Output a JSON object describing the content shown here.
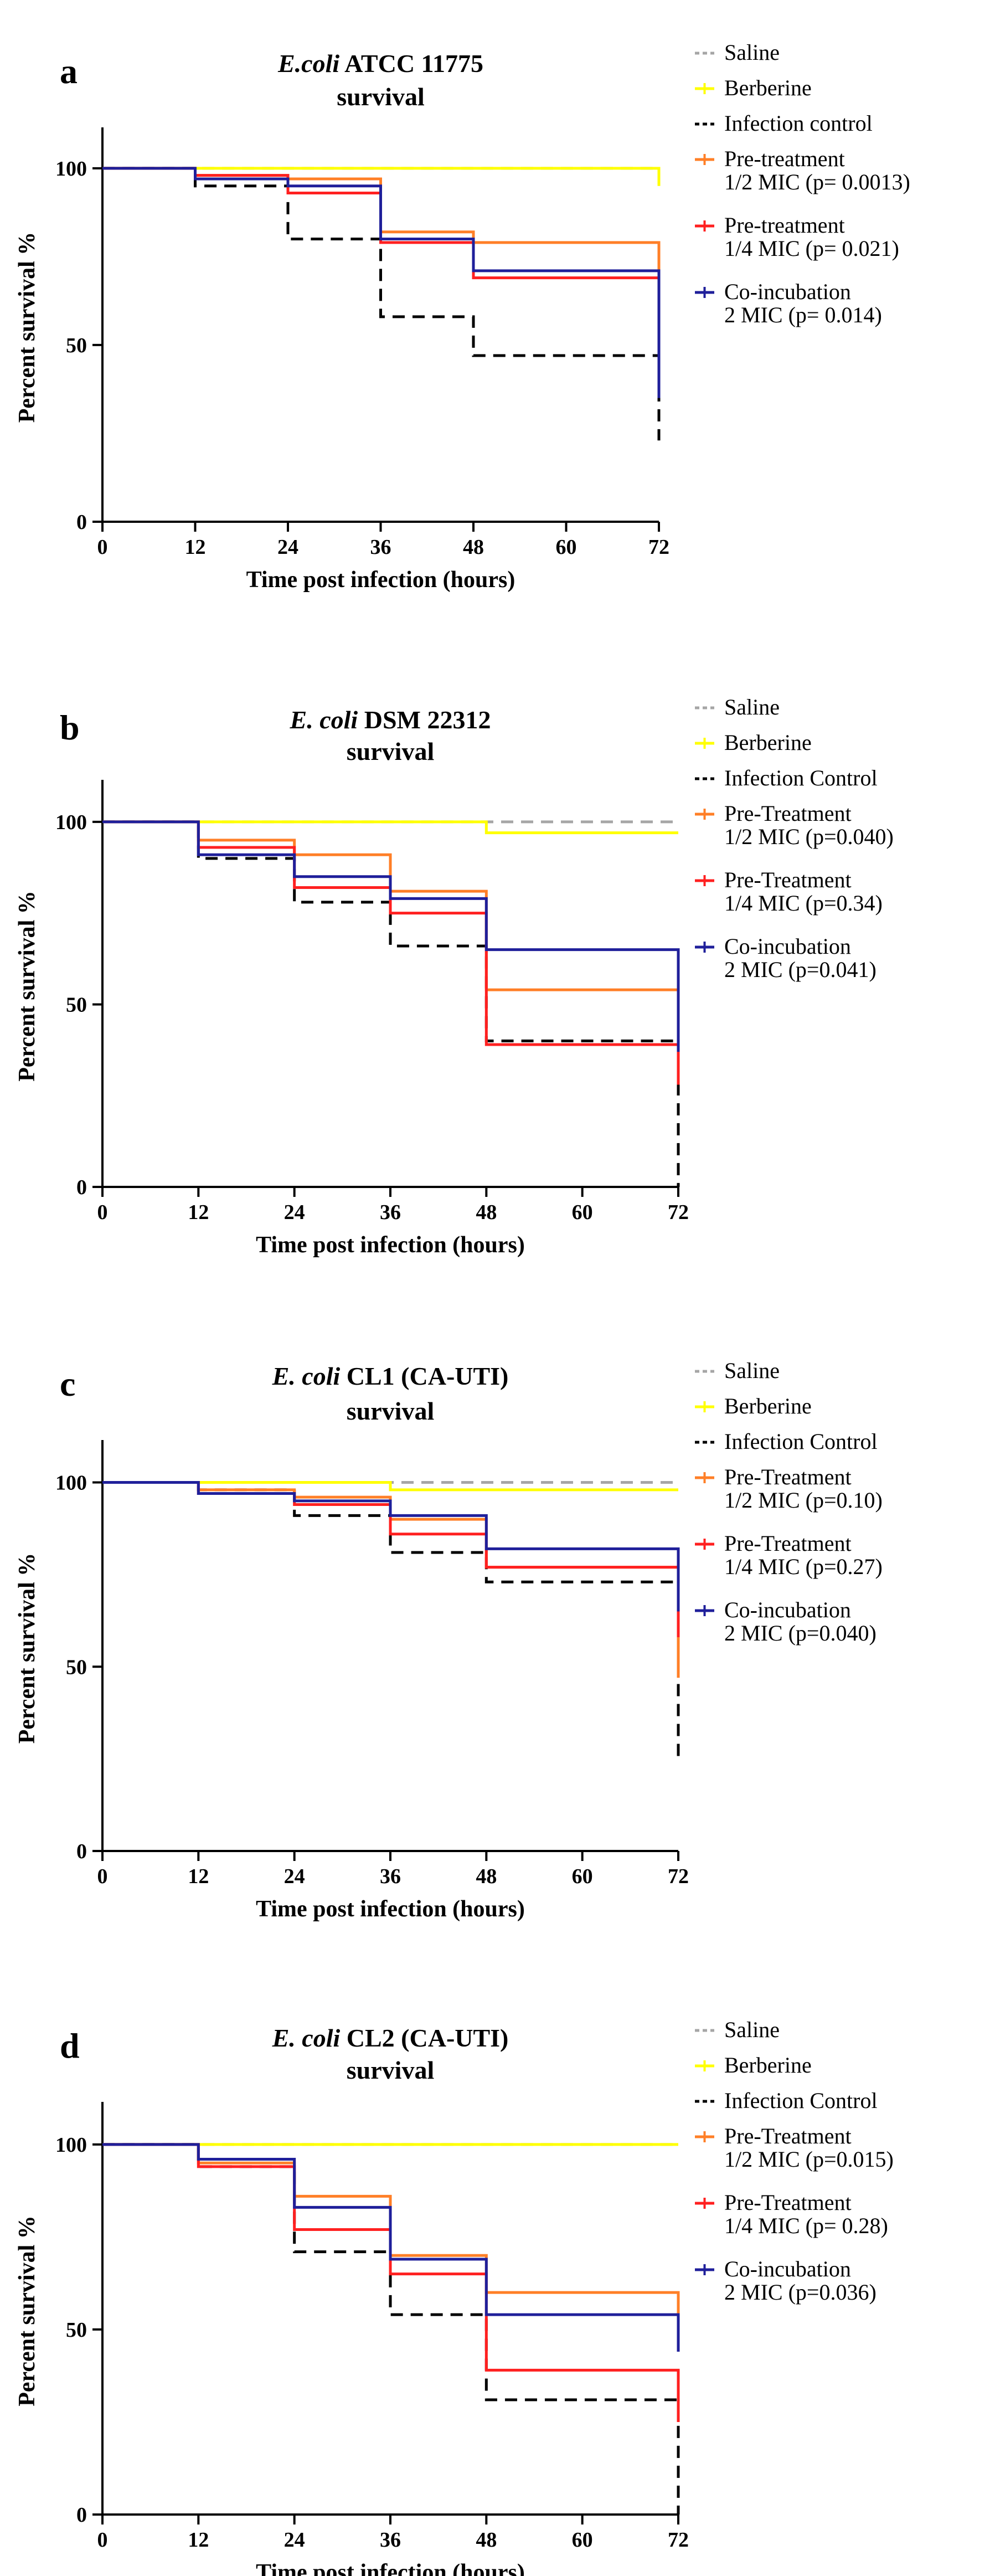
{
  "figure": {
    "xlabel": "Time post infection (hours)",
    "ylabel": "Percent survival %"
  },
  "chart_data": [
    {
      "type": "line",
      "panel_label": "a",
      "title_italic": "E.coli",
      "title_rest": " ATCC 11775",
      "title_line2": "survival",
      "xlabel": "Time post infection (hours)",
      "ylabel": "Percent survival %",
      "xlim": [
        0,
        72
      ],
      "ylim": [
        0,
        110
      ],
      "x_ticks": [
        0,
        12,
        24,
        36,
        48,
        60,
        72
      ],
      "y_ticks": [
        0,
        50,
        100
      ],
      "legend_position": "right",
      "series": [
        {
          "name": "Saline",
          "legend_lines": [
            "Saline"
          ],
          "color": "#a6a6a6",
          "dashed": true,
          "x": [
            0,
            72
          ],
          "y": [
            100,
            100
          ]
        },
        {
          "name": "Berberine",
          "legend_lines": [
            "Berberine"
          ],
          "color": "#ffff00",
          "dashed": false,
          "x": [
            0,
            72,
            72
          ],
          "y": [
            100,
            100,
            95
          ]
        },
        {
          "name": "Infection control",
          "legend_lines": [
            "Infection control"
          ],
          "color": "#000000",
          "dashed": true,
          "x": [
            0,
            12,
            24,
            36,
            48,
            72,
            72
          ],
          "y": [
            100,
            95,
            80,
            58,
            47,
            47,
            23
          ]
        },
        {
          "name": "Pre-treatment 1/2 MIC (p= 0.0013)",
          "legend_lines": [
            "Pre-treatment",
            "1/2 MIC (p= 0.0013)"
          ],
          "color": "#ff7f27",
          "dashed": false,
          "x": [
            0,
            12,
            24,
            36,
            48,
            72,
            72
          ],
          "y": [
            100,
            98,
            97,
            82,
            79,
            79,
            45
          ]
        },
        {
          "name": "Pre-treatment 1/4 MIC (p= 0.021)",
          "legend_lines": [
            "Pre-treatment",
            "1/4 MIC (p= 0.021)"
          ],
          "color": "#ff2020",
          "dashed": false,
          "x": [
            0,
            12,
            24,
            36,
            48,
            72,
            72
          ],
          "y": [
            100,
            98,
            93,
            79,
            69,
            69,
            48
          ]
        },
        {
          "name": "Co-incubation 2 MIC (p= 0.014)",
          "legend_lines": [
            "Co-incubation",
            "2 MIC (p= 0.014)"
          ],
          "color": "#1f1f9a",
          "dashed": false,
          "x": [
            0,
            12,
            24,
            36,
            48,
            72,
            72
          ],
          "y": [
            100,
            97,
            95,
            80,
            71,
            71,
            35
          ]
        }
      ]
    },
    {
      "type": "line",
      "panel_label": "b",
      "title_italic": "E. coli",
      "title_rest": " DSM 22312",
      "title_line2": "survival",
      "xlabel": "Time post infection (hours)",
      "ylabel": "Percent survival %",
      "xlim": [
        0,
        72
      ],
      "ylim": [
        0,
        110
      ],
      "x_ticks": [
        0,
        12,
        24,
        36,
        48,
        60,
        72
      ],
      "y_ticks": [
        0,
        50,
        100
      ],
      "legend_position": "right",
      "series": [
        {
          "name": "Saline",
          "legend_lines": [
            "Saline"
          ],
          "color": "#a6a6a6",
          "dashed": true,
          "x": [
            0,
            72
          ],
          "y": [
            100,
            100
          ]
        },
        {
          "name": "Berberine",
          "legend_lines": [
            "Berberine"
          ],
          "color": "#ffff00",
          "dashed": false,
          "x": [
            0,
            48,
            72
          ],
          "y": [
            100,
            97,
            97
          ]
        },
        {
          "name": "Infection Control",
          "legend_lines": [
            "Infection Control"
          ],
          "color": "#000000",
          "dashed": true,
          "x": [
            0,
            12,
            24,
            36,
            48,
            72,
            72
          ],
          "y": [
            100,
            90,
            78,
            66,
            40,
            40,
            0
          ]
        },
        {
          "name": "Pre-Treatment 1/2 MIC (p=0.040)",
          "legend_lines": [
            "Pre-Treatment",
            "1/2 MIC (p=0.040)"
          ],
          "color": "#ff7f27",
          "dashed": false,
          "x": [
            0,
            12,
            24,
            36,
            48,
            72,
            72
          ],
          "y": [
            100,
            95,
            91,
            81,
            54,
            54,
            30
          ]
        },
        {
          "name": "Pre-Treatment 1/4 MIC (p=0.34)",
          "legend_lines": [
            "Pre-Treatment",
            " 1/4 MIC (p=0.34)"
          ],
          "color": "#ff2020",
          "dashed": false,
          "x": [
            0,
            12,
            24,
            36,
            48,
            72,
            72
          ],
          "y": [
            100,
            93,
            82,
            75,
            39,
            39,
            28
          ]
        },
        {
          "name": "Co-incubation 2 MIC (p=0.041)",
          "legend_lines": [
            "Co-incubation",
            " 2 MIC (p=0.041)"
          ],
          "color": "#1f1f9a",
          "dashed": false,
          "x": [
            0,
            12,
            24,
            36,
            48,
            72,
            72
          ],
          "y": [
            100,
            91,
            85,
            79,
            65,
            65,
            37
          ]
        }
      ]
    },
    {
      "type": "line",
      "panel_label": "c",
      "title_italic": "E. coli",
      "title_rest": " CL1 (CA-UTI)",
      "title_line2": "survival",
      "xlabel": "Time post infection (hours)",
      "ylabel": "Percent survival %",
      "xlim": [
        0,
        72
      ],
      "ylim": [
        0,
        110
      ],
      "x_ticks": [
        0,
        12,
        24,
        36,
        48,
        60,
        72
      ],
      "y_ticks": [
        0,
        50,
        100
      ],
      "legend_position": "right",
      "series": [
        {
          "name": "Saline",
          "legend_lines": [
            "Saline"
          ],
          "color": "#a6a6a6",
          "dashed": true,
          "x": [
            0,
            72
          ],
          "y": [
            100,
            100
          ]
        },
        {
          "name": "Berberine",
          "legend_lines": [
            "Berberine"
          ],
          "color": "#ffff00",
          "dashed": false,
          "x": [
            0,
            36,
            72
          ],
          "y": [
            100,
            98,
            98
          ]
        },
        {
          "name": "Infection Control",
          "legend_lines": [
            "Infection Control"
          ],
          "color": "#000000",
          "dashed": true,
          "x": [
            0,
            12,
            24,
            36,
            48,
            72,
            72
          ],
          "y": [
            100,
            98,
            91,
            81,
            73,
            73,
            24
          ]
        },
        {
          "name": "Pre-Treatment 1/2 MIC (p=0.10)",
          "legend_lines": [
            "Pre-Treatment",
            "1/2 MIC (p=0.10)"
          ],
          "color": "#ff7f27",
          "dashed": false,
          "x": [
            0,
            12,
            24,
            36,
            48,
            72,
            72
          ],
          "y": [
            100,
            98,
            96,
            90,
            77,
            77,
            47
          ]
        },
        {
          "name": "Pre-Treatment 1/4 MIC (p=0.27)",
          "legend_lines": [
            "Pre-Treatment",
            "1/4 MIC (p=0.27)"
          ],
          "color": "#ff2020",
          "dashed": false,
          "x": [
            0,
            12,
            24,
            36,
            48,
            72,
            72
          ],
          "y": [
            100,
            97,
            94,
            86,
            77,
            77,
            58
          ]
        },
        {
          "name": "Co-incubation 2 MIC (p=0.040)",
          "legend_lines": [
            "Co-incubation",
            " 2 MIC (p=0.040)"
          ],
          "color": "#1f1f9a",
          "dashed": false,
          "x": [
            0,
            12,
            24,
            36,
            48,
            72,
            72
          ],
          "y": [
            100,
            97,
            95,
            91,
            82,
            82,
            65
          ]
        }
      ]
    },
    {
      "type": "line",
      "panel_label": "d",
      "title_italic": "E. coli",
      "title_rest": " CL2 (CA-UTI)",
      "title_line2": "survival",
      "xlabel": "Time post infection (hours)",
      "ylabel": "Percent survival %",
      "xlim": [
        0,
        72
      ],
      "ylim": [
        0,
        110
      ],
      "x_ticks": [
        0,
        12,
        24,
        36,
        48,
        60,
        72
      ],
      "y_ticks": [
        0,
        50,
        100
      ],
      "legend_position": "right",
      "series": [
        {
          "name": "Saline",
          "legend_lines": [
            "Saline"
          ],
          "color": "#a6a6a6",
          "dashed": true,
          "x": [
            0,
            72
          ],
          "y": [
            100,
            100
          ]
        },
        {
          "name": "Berberine",
          "legend_lines": [
            "Berberine"
          ],
          "color": "#ffff00",
          "dashed": false,
          "x": [
            0,
            72
          ],
          "y": [
            100,
            100
          ]
        },
        {
          "name": "Infection Control",
          "legend_lines": [
            "Infection Control"
          ],
          "color": "#000000",
          "dashed": true,
          "x": [
            0,
            12,
            24,
            36,
            48,
            72,
            72
          ],
          "y": [
            100,
            94,
            71,
            54,
            31,
            31,
            0
          ]
        },
        {
          "name": "Pre-Treatment 1/2 MIC (p=0.015)",
          "legend_lines": [
            "Pre-Treatment",
            "1/2 MIC (p=0.015)"
          ],
          "color": "#ff7f27",
          "dashed": false,
          "x": [
            0,
            12,
            24,
            36,
            48,
            72,
            72
          ],
          "y": [
            100,
            95,
            86,
            70,
            60,
            60,
            44
          ]
        },
        {
          "name": "Pre-Treatment 1/4 MIC (p= 0.28)",
          "legend_lines": [
            "Pre-Treatment",
            "1/4 MIC (p= 0.28)"
          ],
          "color": "#ff2020",
          "dashed": false,
          "x": [
            0,
            12,
            24,
            36,
            48,
            72,
            72
          ],
          "y": [
            100,
            94,
            77,
            65,
            39,
            39,
            25
          ]
        },
        {
          "name": "Co-incubation 2 MIC (p=0.036)",
          "legend_lines": [
            "Co-incubation",
            "2 MIC (p=0.036)"
          ],
          "color": "#1f1f9a",
          "dashed": false,
          "x": [
            0,
            12,
            24,
            36,
            48,
            72,
            72
          ],
          "y": [
            100,
            96,
            83,
            69,
            54,
            54,
            44
          ]
        }
      ]
    }
  ]
}
